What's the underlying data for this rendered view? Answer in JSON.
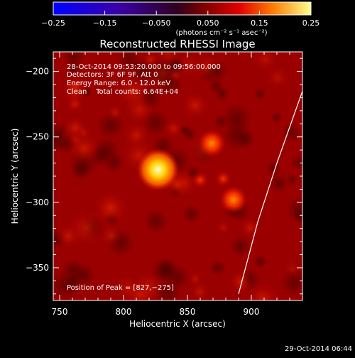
{
  "chart_data": {
    "type": "heatmap",
    "title": "Reconstructed RHESSI Image",
    "xlabel": "Heliocentric X (arcsec)",
    "ylabel": "Heliocentric Y (arcsec)",
    "xlim": [
      745,
      940
    ],
    "ylim": [
      -375,
      -185
    ],
    "x_ticks": [
      750,
      800,
      850,
      900
    ],
    "x_tick_labels": [
      "750",
      "800",
      "850",
      "900"
    ],
    "y_ticks": [
      -200,
      -250,
      -300,
      -350
    ],
    "y_tick_labels": [
      "−200",
      "−250",
      "−300",
      "−350"
    ],
    "colorbar": {
      "range": [
        -0.25,
        0.25
      ],
      "ticks": [
        -0.25,
        -0.15,
        -0.05,
        0.05,
        0.15,
        0.25
      ],
      "tick_labels": [
        "−0.25",
        "−0.15",
        "−0.050",
        "0.050",
        "0.15",
        "0.25"
      ],
      "units": "(photons cm⁻² s⁻¹ asec⁻²)"
    },
    "annotations": [
      "28-Oct-2014 09:53:20.000 to 09:56:00.000",
      "Detectors: 3F 6F 9F, Att 0",
      "Energy Range: 6.0 - 12.0 keV",
      "Clean    Total counts: 6.64E+04"
    ],
    "peak_text": "Position of Peak = [827,−275]",
    "peak": [
      827,
      -275
    ],
    "sources": [
      {
        "x": 827,
        "y": -275,
        "value": 0.25
      },
      {
        "x": 869,
        "y": -255,
        "value": 0.12
      },
      {
        "x": 886,
        "y": -298,
        "value": 0.14
      },
      {
        "x": 878,
        "y": -282,
        "value": 0.1
      },
      {
        "x": 860,
        "y": -283,
        "value": 0.1
      }
    ],
    "limb_curve": [
      [
        940,
        -215
      ],
      [
        920,
        -270
      ],
      [
        905,
        -315
      ],
      [
        890,
        -370
      ]
    ],
    "timestamp": "29-Oct-2014 06:44"
  }
}
